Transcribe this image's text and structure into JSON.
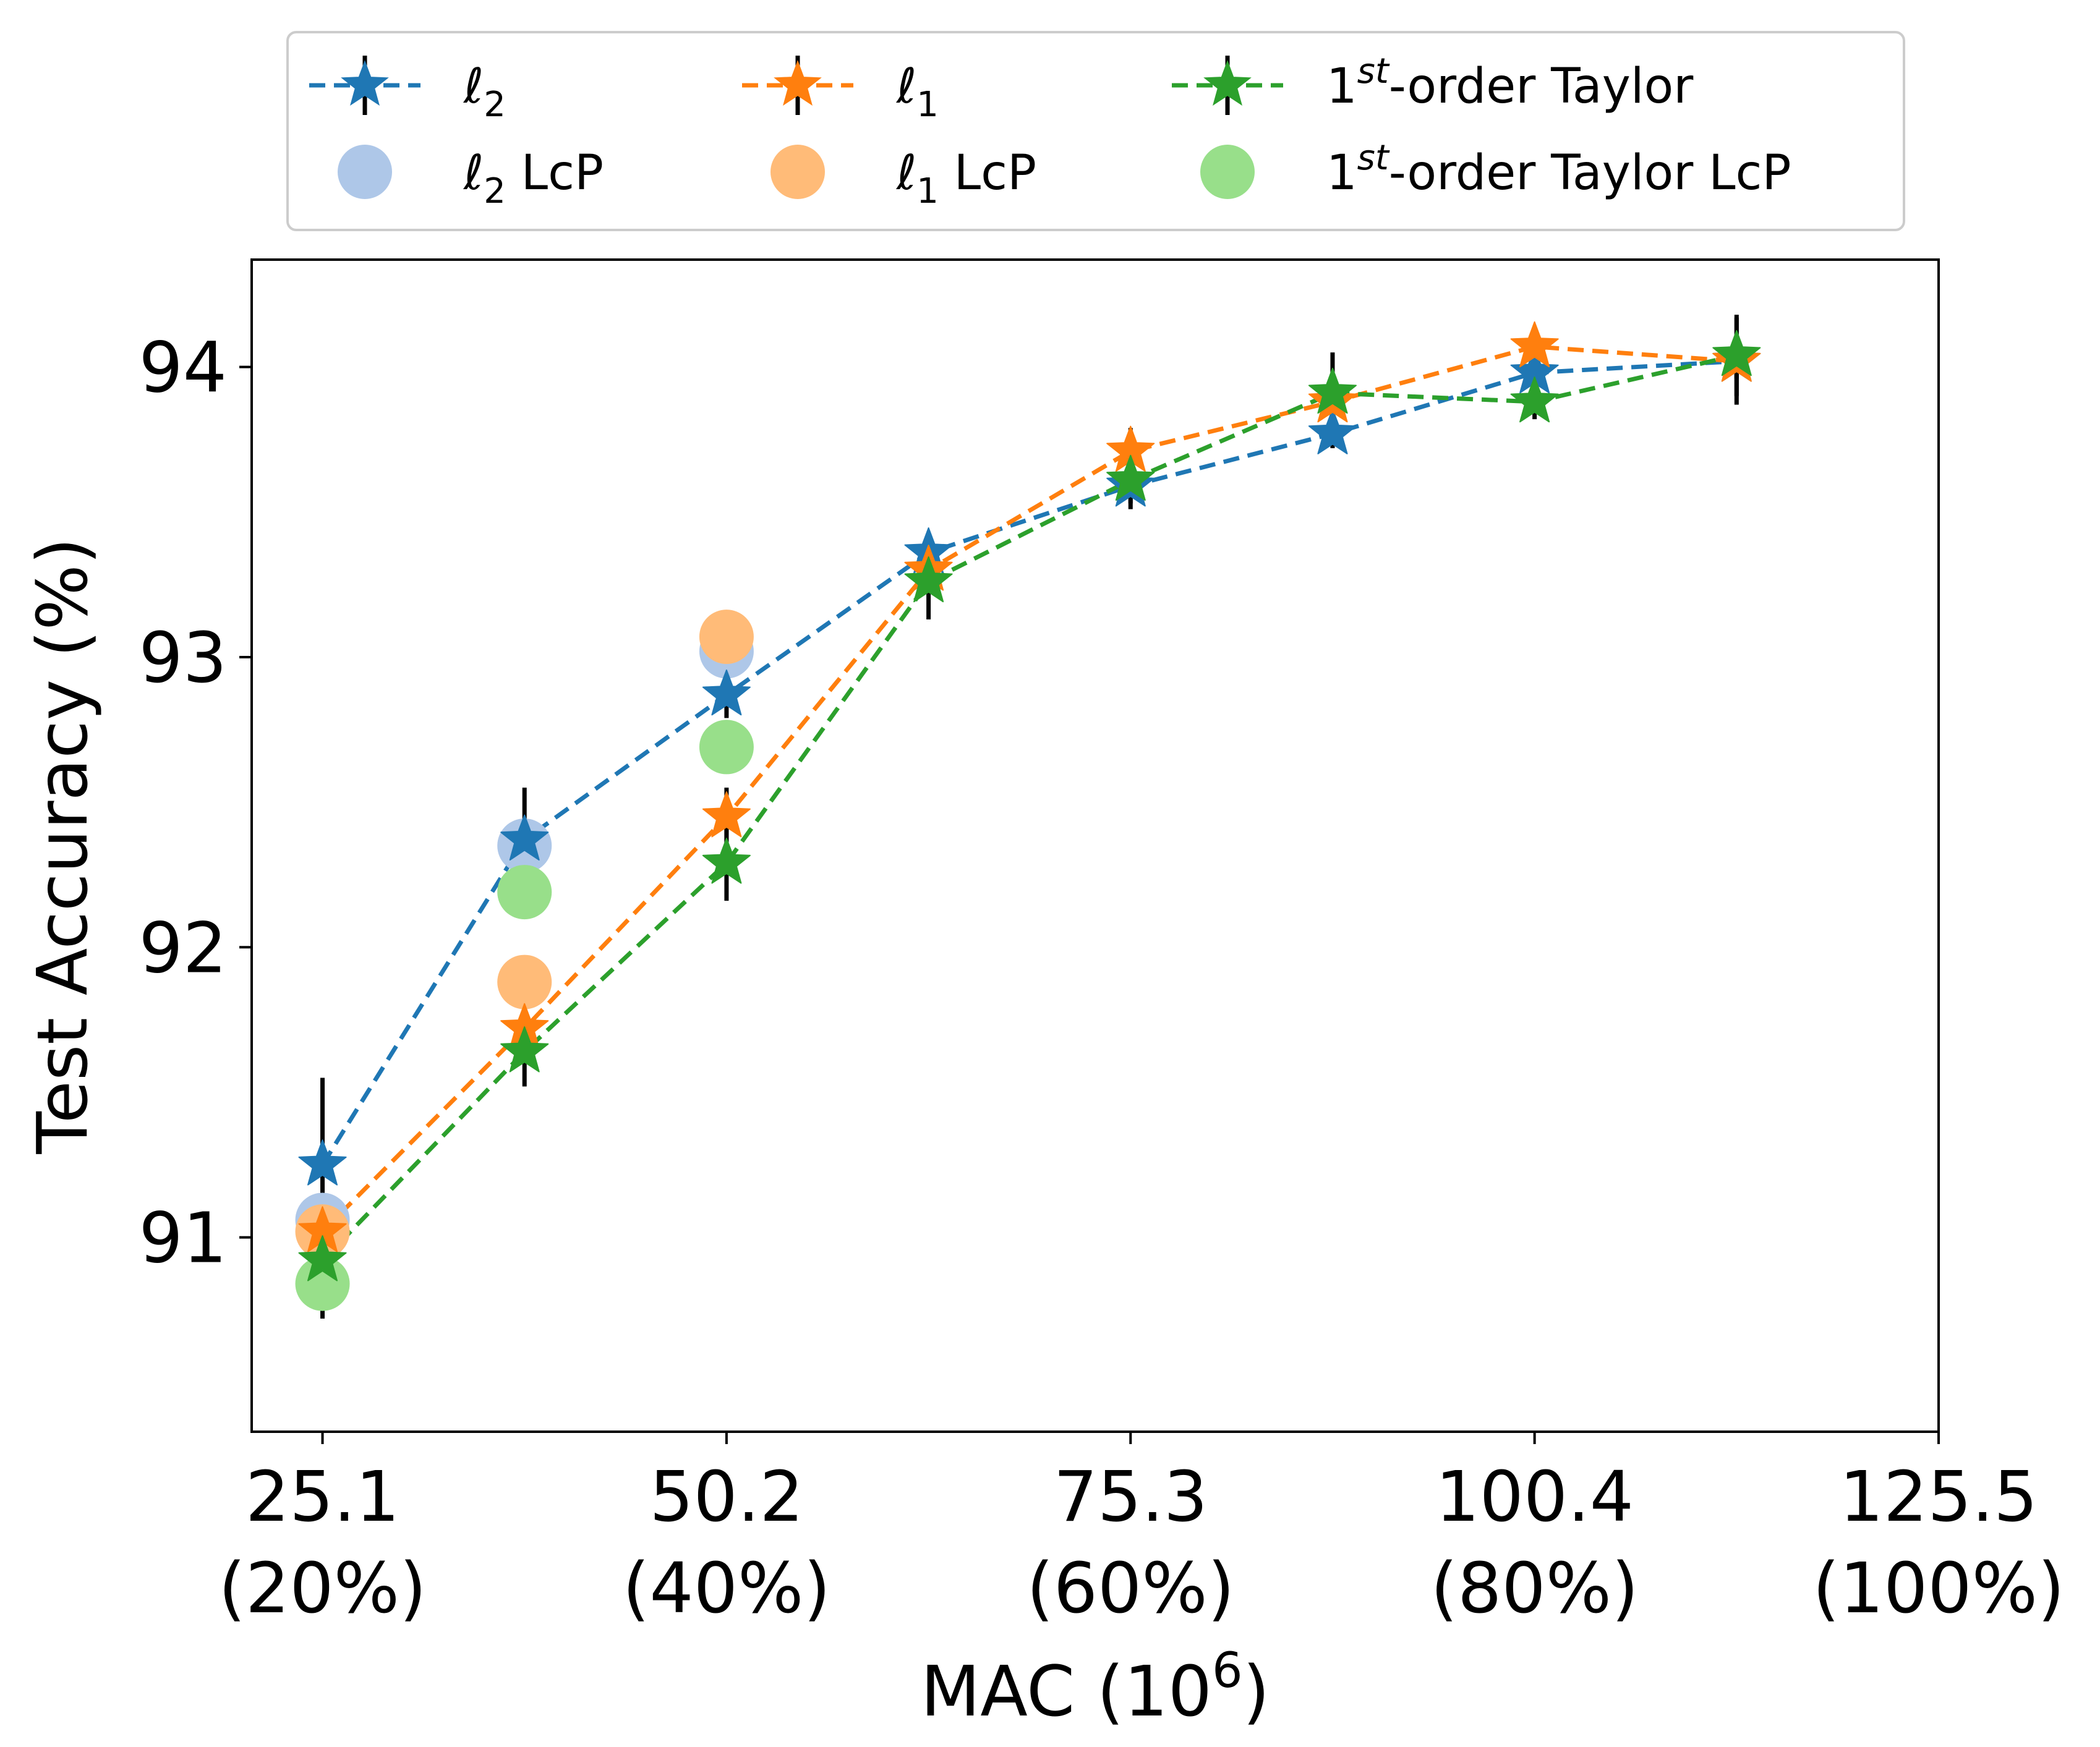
{
  "chart_data": {
    "type": "line",
    "xlabel": "MAC (10",
    "xlabel_sup": "6",
    "xlabel_end": ")",
    "ylabel": "Test Accuracy (%)",
    "x_ticks": [
      {
        "value": 25.1,
        "line1": "25.1",
        "line2": "(20%)"
      },
      {
        "value": 50.2,
        "line1": "50.2",
        "line2": "(40%)"
      },
      {
        "value": 75.3,
        "line1": "75.3",
        "line2": "(60%)"
      },
      {
        "value": 100.4,
        "line1": "100.4",
        "line2": "(80%)"
      },
      {
        "value": 125.5,
        "line1": "125.5",
        "line2": "(100%)"
      }
    ],
    "y_ticks": [
      {
        "value": 91,
        "label": "91"
      },
      {
        "value": 92,
        "label": "92"
      },
      {
        "value": 93,
        "label": "93"
      },
      {
        "value": 94,
        "label": "94"
      }
    ],
    "xlim": [
      20.7,
      125.5
    ],
    "ylim": [
      90.33,
      94.37
    ],
    "legend_position": "top",
    "series": [
      {
        "key": "l2",
        "name": "ℓ",
        "name_sub": "2",
        "name_suffix": "",
        "color": "#1f77b4",
        "x": [
          25.1,
          37.65,
          50.2,
          62.75,
          75.3,
          87.85,
          100.4,
          112.95
        ],
        "y": [
          91.25,
          92.37,
          92.87,
          93.36,
          93.59,
          93.77,
          93.98,
          94.02
        ],
        "err": [
          0.3,
          0.18,
          0.08,
          0.06,
          0.06,
          0.05,
          0.06,
          0.15
        ]
      },
      {
        "key": "l1",
        "name": "ℓ",
        "name_sub": "1",
        "name_suffix": "",
        "color": "#ff7f0e",
        "x": [
          25.1,
          37.65,
          50.2,
          62.75,
          75.3,
          87.85,
          100.4,
          112.95
        ],
        "y": [
          91.02,
          91.72,
          92.45,
          93.3,
          93.71,
          93.88,
          94.07,
          94.02
        ],
        "err": [
          0.08,
          0.1,
          0.1,
          0.08,
          0.08,
          0.1,
          0.06,
          0.06
        ]
      },
      {
        "key": "taylor",
        "name": "1",
        "name_sup": "st",
        "name_suffix": "-order Taylor",
        "color": "#2ca02c",
        "x": [
          25.1,
          37.65,
          50.2,
          62.75,
          75.3,
          87.85,
          100.4,
          112.95
        ],
        "y": [
          90.92,
          91.64,
          92.29,
          93.26,
          93.61,
          93.91,
          93.88,
          94.04
        ],
        "err": [
          0.2,
          0.12,
          0.13,
          0.13,
          0.1,
          0.14,
          0.06,
          0.14
        ]
      }
    ],
    "lcp_series": [
      {
        "key": "l2_lcp",
        "name": "ℓ",
        "name_sub": "2",
        "name_suffix": " LcP",
        "color": "#aec7e8",
        "x": [
          25.1,
          37.65,
          50.2
        ],
        "y": [
          91.06,
          92.35,
          93.02
        ]
      },
      {
        "key": "l1_lcp",
        "name": "ℓ",
        "name_sub": "1",
        "name_suffix": " LcP",
        "color": "#ffbb78",
        "x": [
          25.1,
          37.65,
          50.2
        ],
        "y": [
          91.02,
          91.88,
          93.07
        ]
      },
      {
        "key": "taylor_lcp",
        "name": "1",
        "name_sup": "st",
        "name_suffix": "-order Taylor LcP",
        "color": "#98df8a",
        "x": [
          25.1,
          37.65,
          50.2
        ],
        "y": [
          90.84,
          92.19,
          92.69
        ]
      }
    ]
  }
}
